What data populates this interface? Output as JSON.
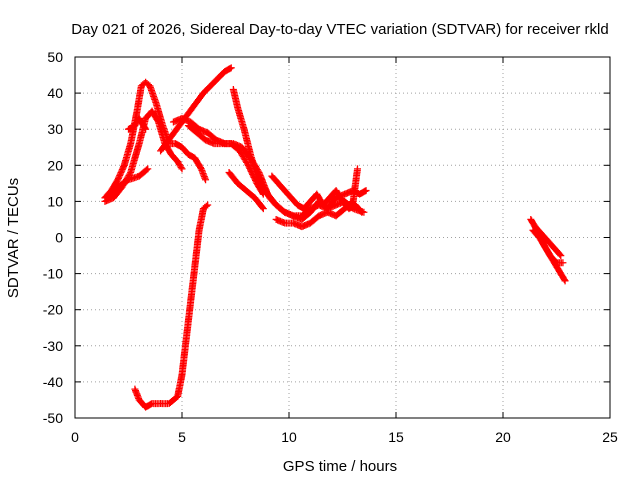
{
  "chart_data": {
    "type": "scatter",
    "title": "Day 021 of 2026, Sidereal Day-to-day VTEC variation (SDTVAR) for receiver rkld",
    "xlabel": "GPS time / hours",
    "ylabel": "SDTVAR / TECUs",
    "xlim": [
      0,
      25
    ],
    "ylim": [
      -50,
      50
    ],
    "xticks": [
      "0",
      "5",
      "10",
      "15",
      "20",
      "25"
    ],
    "yticks": [
      "50",
      "40",
      "30",
      "20",
      "10",
      "0",
      "-10",
      "-20",
      "-30",
      "-40",
      "-50"
    ],
    "grid": true,
    "marker": "plus",
    "color": "#ff0000",
    "series": [
      {
        "name": "s1",
        "x": [
          1.4,
          1.7,
          2.0,
          2.3,
          2.6,
          2.9,
          3.1,
          3.3,
          3.5,
          3.8,
          4.1,
          4.4,
          4.7,
          5.0,
          5.3,
          5.6,
          5.9,
          6.1
        ],
        "y": [
          11,
          13,
          16,
          20,
          26,
          35,
          42,
          43,
          42,
          37,
          31,
          26,
          26,
          25,
          23,
          22,
          19,
          16
        ]
      },
      {
        "name": "s2",
        "x": [
          1.4,
          1.8,
          2.2,
          2.6,
          3.0,
          3.3,
          3.6,
          3.9,
          4.2,
          4.5,
          4.8,
          5.0
        ],
        "y": [
          10,
          11,
          14,
          18,
          26,
          33,
          35,
          32,
          26,
          23,
          21,
          19
        ]
      },
      {
        "name": "s3",
        "x": [
          1.5,
          2.0,
          2.5,
          3.0,
          3.4
        ],
        "y": [
          11,
          14,
          16,
          17,
          19
        ]
      },
      {
        "name": "s4",
        "x": [
          2.5,
          2.8,
          3.0,
          3.3
        ],
        "y": [
          30,
          31,
          33,
          30
        ]
      },
      {
        "name": "s5",
        "x": [
          4.0,
          4.5,
          5.0,
          5.5,
          6.0,
          6.5,
          7.0,
          7.3
        ],
        "y": [
          24,
          28,
          32,
          36,
          40,
          43,
          46,
          47
        ]
      },
      {
        "name": "s6",
        "x": [
          4.6,
          5.0,
          5.4,
          5.8,
          6.2,
          6.6,
          7.0,
          7.4,
          7.8,
          8.2,
          8.6,
          9.0,
          9.4,
          9.8,
          10.2,
          10.6,
          11.0,
          11.4,
          11.8,
          12.2,
          12.6,
          13.0,
          13.5
        ],
        "y": [
          32,
          33,
          32,
          30,
          29,
          27,
          26,
          26,
          25,
          22,
          18,
          12,
          9,
          7,
          6,
          6,
          8,
          9,
          8,
          9,
          10,
          8,
          7
        ]
      },
      {
        "name": "s7",
        "x": [
          5.3,
          5.7,
          6.1,
          6.5,
          6.9,
          7.3,
          7.7,
          8.1,
          8.5,
          8.8
        ],
        "y": [
          31,
          29,
          27,
          26,
          26,
          26,
          24,
          20,
          15,
          12
        ]
      },
      {
        "name": "s8",
        "x": [
          7.4,
          7.6,
          7.9,
          8.2,
          8.5,
          8.8,
          9.1,
          9.4,
          9.8,
          10.2,
          10.6,
          11.0,
          11.4,
          11.8,
          12.2,
          12.6,
          13.0,
          13.3,
          13.6
        ],
        "y": [
          41,
          36,
          30,
          23,
          17,
          14,
          11,
          9,
          7,
          6,
          5,
          7,
          10,
          8,
          11,
          12,
          13,
          12,
          13
        ]
      },
      {
        "name": "s9",
        "x": [
          7.2,
          7.6,
          8.0,
          8.4,
          8.8
        ],
        "y": [
          18,
          15,
          13,
          11,
          8
        ]
      },
      {
        "name": "s10",
        "x": [
          9.2,
          9.5,
          9.8,
          10.1,
          10.4,
          10.7,
          11.0,
          11.3,
          11.6,
          11.9,
          12.2,
          12.5,
          12.8,
          13.1,
          13.4
        ],
        "y": [
          17,
          15,
          13,
          11,
          9,
          8,
          10,
          12,
          9,
          11,
          13,
          10,
          8,
          9,
          7
        ]
      },
      {
        "name": "s11",
        "x": [
          9.4,
          9.8,
          10.2,
          10.6,
          11.0,
          11.4,
          11.8,
          12.2,
          12.6,
          13.0,
          13.2
        ],
        "y": [
          5,
          4,
          4,
          3,
          4,
          6,
          7,
          6,
          8,
          10,
          19
        ]
      },
      {
        "name": "s12",
        "x": [
          2.8,
          3.0,
          3.3,
          3.6,
          4.0,
          4.4,
          4.8,
          5.0,
          5.2,
          5.4,
          5.6,
          5.8,
          6.0,
          6.2
        ],
        "y": [
          -42,
          -45,
          -47,
          -46,
          -46,
          -46,
          -44,
          -38,
          -28,
          -18,
          -8,
          2,
          8,
          9
        ]
      },
      {
        "name": "s13",
        "x": [
          21.3,
          21.6,
          21.9,
          22.2,
          22.5,
          22.8
        ],
        "y": [
          5,
          2,
          -2,
          -5,
          -7,
          -7
        ]
      },
      {
        "name": "s14",
        "x": [
          21.4,
          21.7,
          22.0,
          22.3,
          22.6,
          22.9
        ],
        "y": [
          2,
          0,
          -3,
          -6,
          -9,
          -12
        ]
      },
      {
        "name": "s15",
        "x": [
          21.5,
          21.8,
          22.1,
          22.4,
          22.7
        ],
        "y": [
          3,
          1,
          -1,
          -3,
          -5
        ]
      }
    ]
  }
}
